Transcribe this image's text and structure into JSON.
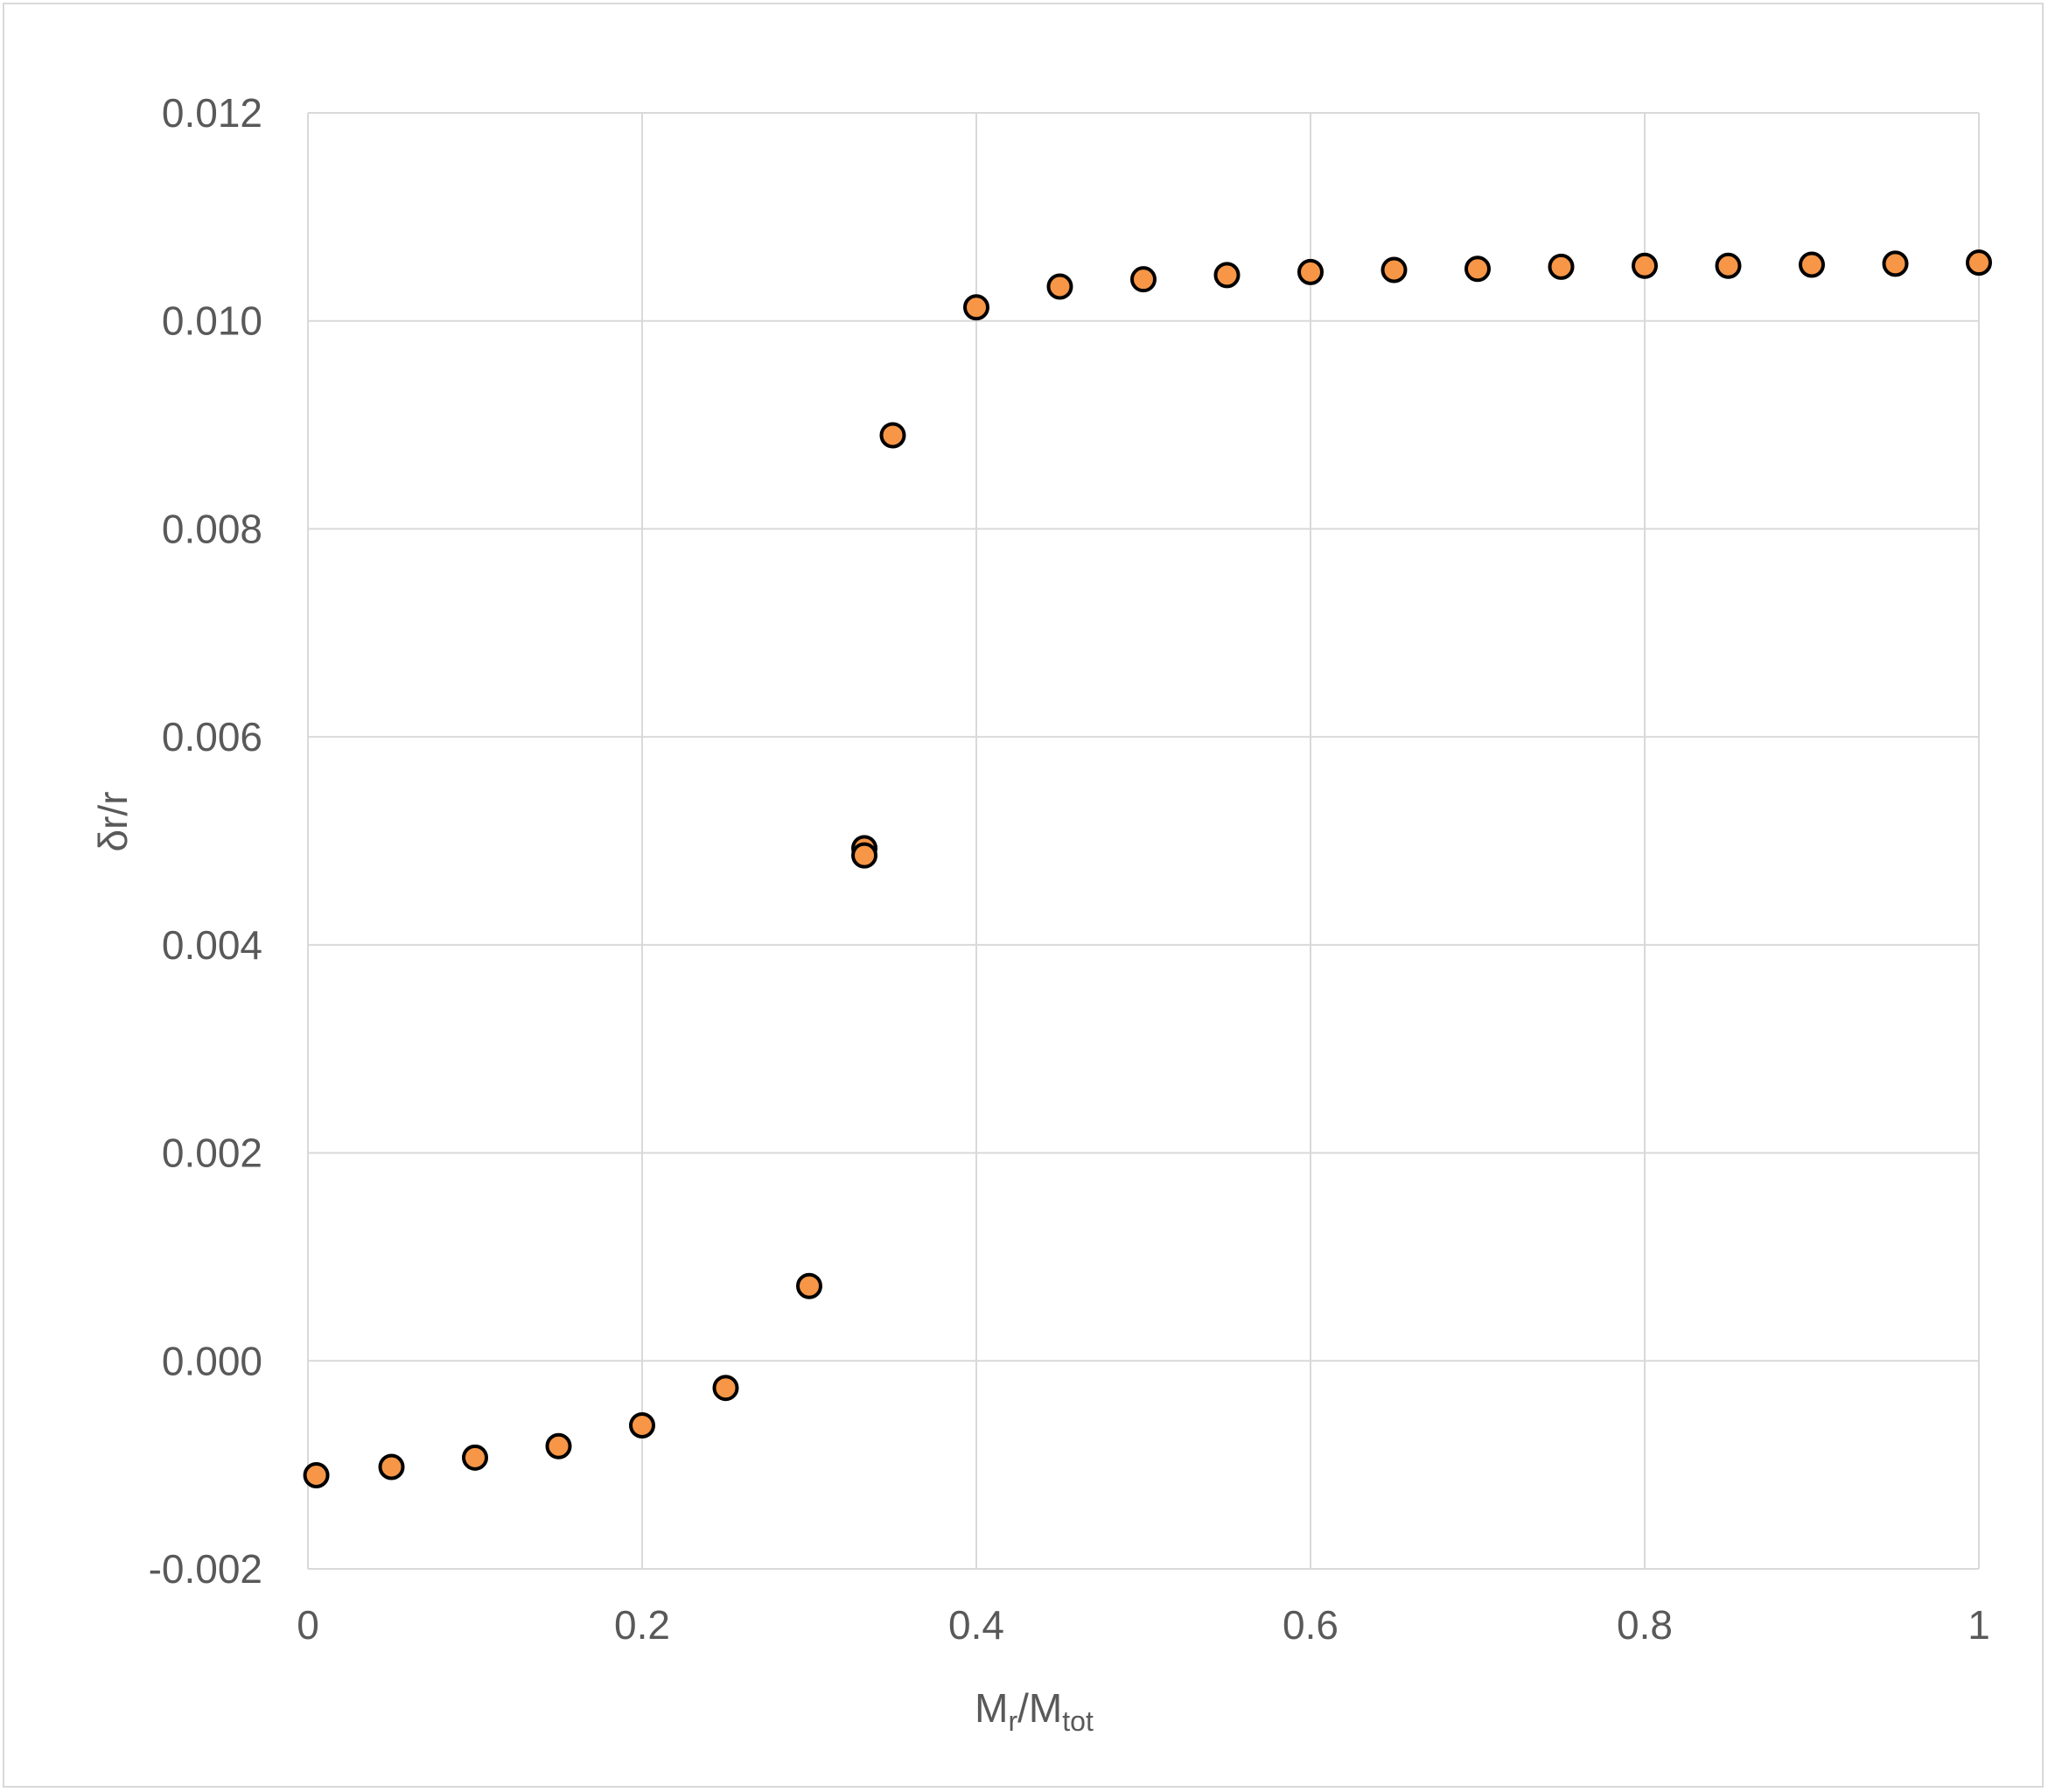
{
  "chart_data": {
    "type": "scatter",
    "title": "",
    "xlabel": {
      "main": "M",
      "sub": "r",
      "slash": "/M",
      "sub2": "tot"
    },
    "ylabel": "δr/r",
    "xlim": [
      0,
      1
    ],
    "ylim": [
      -0.002,
      0.012
    ],
    "grid": true,
    "legend": "none",
    "x_ticks": [
      "0",
      "0.2",
      "0.4",
      "0.6",
      "0.8",
      "1"
    ],
    "x_tick_values": [
      0,
      0.2,
      0.4,
      0.6,
      0.8,
      1
    ],
    "y_ticks": [
      "-0.002",
      "0.000",
      "0.002",
      "0.004",
      "0.006",
      "0.008",
      "0.010",
      "0.012"
    ],
    "y_tick_values": [
      -0.002,
      0,
      0.002,
      0.004,
      0.006,
      0.008,
      0.01,
      0.012
    ],
    "series": [
      {
        "marker_color": "#f79646",
        "marker_edge_color": "#000000",
        "points": [
          {
            "x": 0.005,
            "y": -0.0011
          },
          {
            "x": 0.05,
            "y": -0.00102
          },
          {
            "x": 0.1,
            "y": -0.00093
          },
          {
            "x": 0.15,
            "y": -0.00082
          },
          {
            "x": 0.2,
            "y": -0.00062
          },
          {
            "x": 0.25,
            "y": -0.00026
          },
          {
            "x": 0.3,
            "y": 0.00072
          },
          {
            "x": 0.333,
            "y": 0.00493
          },
          {
            "x": 0.333,
            "y": 0.00486
          },
          {
            "x": 0.35,
            "y": 0.0089
          },
          {
            "x": 0.4,
            "y": 0.01013
          },
          {
            "x": 0.45,
            "y": 0.01033
          },
          {
            "x": 0.5,
            "y": 0.0104
          },
          {
            "x": 0.55,
            "y": 0.01044
          },
          {
            "x": 0.6,
            "y": 0.01047
          },
          {
            "x": 0.65,
            "y": 0.01049
          },
          {
            "x": 0.7,
            "y": 0.0105
          },
          {
            "x": 0.75,
            "y": 0.01052
          },
          {
            "x": 0.8,
            "y": 0.01053
          },
          {
            "x": 0.85,
            "y": 0.01053
          },
          {
            "x": 0.9,
            "y": 0.01054
          },
          {
            "x": 0.95,
            "y": 0.01055
          },
          {
            "x": 1.0,
            "y": 0.01056
          }
        ]
      }
    ]
  }
}
